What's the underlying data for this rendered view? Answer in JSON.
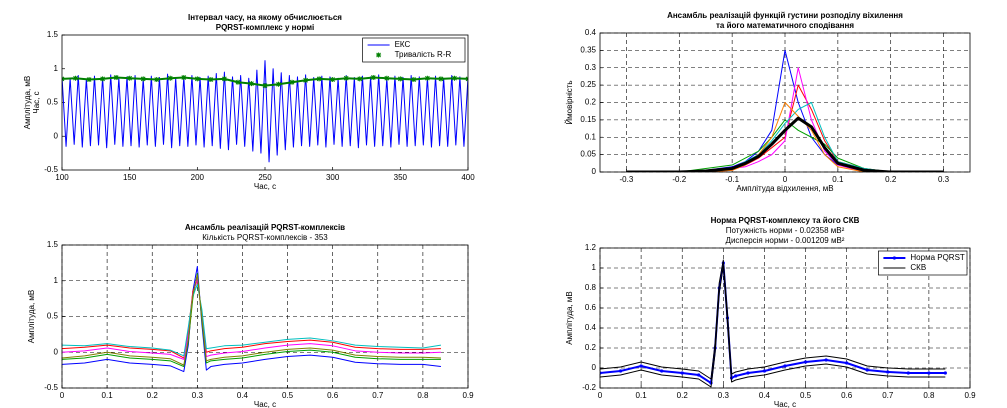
{
  "chart_data": [
    {
      "type": "line",
      "title": [
        "Інтервал часу, на якому обчислюється",
        "PQRST-комплекс у нормі"
      ],
      "xlabel": "Час, с",
      "ylabel": [
        "Амплітуда, мВ",
        "Час, с"
      ],
      "xlim": [
        100,
        400
      ],
      "xticks": [
        100,
        150,
        200,
        250,
        300,
        350,
        400
      ],
      "ylim": [
        -0.5,
        1.5
      ],
      "yticks": [
        -0.5,
        0,
        0.5,
        1,
        1.5
      ],
      "grid": false,
      "legend": "upper right",
      "series": [
        {
          "name": "ЕКС",
          "color": "#0000ff",
          "x": [
            100,
            103,
            106,
            109,
            112,
            115,
            118,
            121,
            124,
            127,
            130,
            133,
            136,
            139,
            142,
            145,
            148,
            151,
            154,
            157,
            160,
            163,
            166,
            169,
            172,
            175,
            178,
            181,
            184,
            187,
            190,
            193,
            196,
            199,
            202,
            205,
            208,
            211,
            214,
            217,
            220,
            223,
            226,
            229,
            232,
            235,
            238,
            241,
            244,
            247,
            250,
            253,
            256,
            259,
            262,
            265,
            268,
            271,
            274,
            277,
            280,
            283,
            286,
            289,
            292,
            295,
            298,
            301,
            304,
            307,
            310,
            313,
            316,
            319,
            322,
            325,
            328,
            331,
            334,
            337,
            340,
            343,
            346,
            349,
            352,
            355,
            358,
            361,
            364,
            367,
            370,
            373,
            376,
            379,
            382,
            385,
            388,
            391,
            394,
            397,
            400
          ],
          "values": [
            0.88,
            -0.15,
            0.86,
            -0.12,
            0.9,
            -0.16,
            0.85,
            -0.14,
            0.89,
            -0.13,
            0.87,
            -0.17,
            0.91,
            -0.12,
            0.86,
            -0.15,
            0.88,
            -0.14,
            0.9,
            -0.16,
            0.85,
            -0.13,
            0.89,
            -0.15,
            0.87,
            -0.12,
            0.92,
            -0.17,
            0.86,
            -0.14,
            0.88,
            -0.15,
            0.9,
            -0.13,
            0.87,
            -0.16,
            0.89,
            -0.14,
            0.93,
            -0.18,
            0.95,
            -0.2,
            0.88,
            -0.12,
            0.9,
            -0.15,
            0.86,
            -0.22,
            0.98,
            -0.25,
            1.12,
            -0.38,
            1.0,
            -0.28,
            0.94,
            -0.2,
            0.9,
            -0.16,
            0.88,
            -0.14,
            0.91,
            -0.15,
            0.87,
            -0.13,
            0.89,
            -0.16,
            0.88,
            -0.12,
            0.86,
            -0.15,
            0.9,
            -0.14,
            0.87,
            -0.17,
            0.89,
            -0.13,
            0.88,
            -0.15,
            0.91,
            -0.14,
            0.86,
            -0.16,
            0.89,
            -0.12,
            0.87,
            -0.15,
            0.9,
            -0.14,
            0.88,
            -0.13,
            0.87,
            -0.16,
            0.89,
            -0.14,
            0.86,
            -0.15,
            0.9,
            -0.13,
            0.88,
            -0.15,
            0.87
          ]
        },
        {
          "name": "Тривалість R-R",
          "color": "#008000",
          "marker": "asterisk",
          "linewidth": 2,
          "x": [
            100,
            110,
            120,
            130,
            140,
            150,
            160,
            170,
            180,
            190,
            200,
            210,
            220,
            230,
            240,
            250,
            260,
            270,
            280,
            290,
            300,
            310,
            320,
            330,
            340,
            350,
            360,
            370,
            380,
            390,
            400
          ],
          "values": [
            0.85,
            0.86,
            0.84,
            0.85,
            0.87,
            0.86,
            0.85,
            0.84,
            0.86,
            0.87,
            0.85,
            0.84,
            0.85,
            0.8,
            0.78,
            0.75,
            0.77,
            0.8,
            0.83,
            0.85,
            0.84,
            0.86,
            0.85,
            0.87,
            0.86,
            0.85,
            0.84,
            0.86,
            0.85,
            0.86,
            0.85
          ]
        }
      ]
    },
    {
      "type": "line",
      "title": [
        "Ансамбль реалізацій функцій густини розподілу віхилення",
        "та його математичного сподівання"
      ],
      "xlabel": "Амплітуда відхилення, мВ",
      "ylabel": [
        "Ймовірність"
      ],
      "xlim": [
        -0.35,
        0.35
      ],
      "xticks": [
        -0.3,
        -0.2,
        -0.1,
        0,
        0.1,
        0.2,
        0.3
      ],
      "ylim": [
        0,
        0.4
      ],
      "yticks": [
        0,
        0.05,
        0.1,
        0.15,
        0.2,
        0.25,
        0.3,
        0.35,
        0.4
      ],
      "grid": true,
      "x": [
        -0.3,
        -0.2,
        -0.15,
        -0.1,
        -0.075,
        -0.05,
        -0.025,
        0,
        0.025,
        0.05,
        0.075,
        0.1,
        0.15,
        0.2,
        0.3
      ],
      "series": [
        {
          "color": "#0000ff",
          "values": [
            0,
            0,
            0.005,
            0.015,
            0.03,
            0.06,
            0.12,
            0.35,
            0.2,
            0.1,
            0.05,
            0.02,
            0.005,
            0,
            0
          ]
        },
        {
          "color": "#ff0000",
          "values": [
            0,
            0,
            0,
            0.005,
            0.02,
            0.04,
            0.07,
            0.1,
            0.25,
            0.18,
            0.09,
            0.03,
            0.01,
            0,
            0
          ]
        },
        {
          "color": "#00a000",
          "values": [
            0,
            0,
            0.01,
            0.02,
            0.04,
            0.06,
            0.1,
            0.15,
            0.12,
            0.1,
            0.08,
            0.04,
            0.01,
            0,
            0
          ]
        },
        {
          "color": "#ff00ff",
          "values": [
            0,
            0,
            0,
            0.01,
            0.015,
            0.03,
            0.05,
            0.09,
            0.3,
            0.15,
            0.06,
            0.02,
            0,
            0,
            0
          ]
        },
        {
          "color": "#00bfbf",
          "values": [
            0,
            0,
            0.005,
            0.01,
            0.03,
            0.05,
            0.09,
            0.14,
            0.18,
            0.2,
            0.1,
            0.03,
            0.01,
            0,
            0
          ]
        },
        {
          "color": "#ff8000",
          "values": [
            0,
            0,
            0,
            0.005,
            0.02,
            0.05,
            0.1,
            0.2,
            0.16,
            0.12,
            0.05,
            0.015,
            0,
            0,
            0
          ]
        },
        {
          "color": "#000000",
          "linewidth": 3,
          "values": [
            0,
            0,
            0.003,
            0.01,
            0.025,
            0.045,
            0.08,
            0.12,
            0.155,
            0.13,
            0.07,
            0.025,
            0.005,
            0,
            0
          ]
        }
      ]
    },
    {
      "type": "line",
      "title": [
        "Ансамбль реалізацій PQRST-комплексів"
      ],
      "subtitle": [
        "Кількість PQRST-комплексів - 353"
      ],
      "xlabel": "Час, с",
      "ylabel": [
        "Амплітуда, мВ"
      ],
      "xlim": [
        0,
        0.9
      ],
      "xticks": [
        0,
        0.1,
        0.2,
        0.3,
        0.4,
        0.5,
        0.6,
        0.7,
        0.8,
        0.9
      ],
      "ylim": [
        -0.5,
        1.5
      ],
      "yticks": [
        -0.5,
        0,
        0.5,
        1,
        1.5
      ],
      "grid": true,
      "x": [
        0,
        0.05,
        0.1,
        0.15,
        0.2,
        0.24,
        0.27,
        0.28,
        0.29,
        0.3,
        0.31,
        0.32,
        0.33,
        0.36,
        0.4,
        0.45,
        0.5,
        0.55,
        0.6,
        0.65,
        0.7,
        0.75,
        0.8,
        0.84
      ],
      "series": [
        {
          "color": "#0000ff",
          "values": [
            -0.17,
            -0.15,
            -0.1,
            -0.15,
            -0.17,
            -0.19,
            -0.27,
            0.1,
            0.85,
            1.2,
            0.4,
            -0.25,
            -0.2,
            -0.17,
            -0.15,
            -0.1,
            -0.06,
            -0.04,
            -0.07,
            -0.14,
            -0.16,
            -0.17,
            -0.17,
            -0.2
          ]
        },
        {
          "color": "#ff0000",
          "values": [
            0.05,
            0.07,
            0.1,
            0.06,
            0.04,
            0.02,
            -0.08,
            0.3,
            0.85,
            1.0,
            0.55,
            0,
            0.02,
            0.05,
            0.07,
            0.12,
            0.15,
            0.17,
            0.14,
            0.07,
            0.05,
            0.04,
            0.04,
            0.05
          ]
        },
        {
          "color": "#00a000",
          "values": [
            -0.1,
            -0.08,
            -0.03,
            -0.08,
            -0.1,
            -0.12,
            -0.2,
            0.15,
            0.75,
            1.1,
            0.45,
            -0.15,
            -0.12,
            -0.1,
            -0.08,
            -0.03,
            0.01,
            0.03,
            0,
            -0.07,
            -0.09,
            -0.1,
            -0.1,
            -0.1
          ]
        },
        {
          "color": "#ff00ff",
          "values": [
            0,
            0.02,
            0.06,
            0.01,
            -0.01,
            -0.03,
            -0.1,
            0.25,
            0.82,
            1.02,
            0.52,
            -0.06,
            -0.04,
            -0.01,
            0.01,
            0.06,
            0.1,
            0.12,
            0.09,
            0.02,
            0,
            -0.01,
            -0.01,
            0
          ]
        },
        {
          "color": "#00bfbf",
          "values": [
            0.1,
            0.09,
            0.12,
            0.08,
            0.06,
            0.03,
            -0.05,
            0.35,
            0.78,
            0.95,
            0.6,
            0.05,
            0.06,
            0.09,
            0.1,
            0.14,
            0.18,
            0.2,
            0.16,
            0.1,
            0.08,
            0.07,
            0.06,
            0.1
          ]
        },
        {
          "color": "#808000",
          "values": [
            -0.08,
            -0.05,
            0,
            -0.05,
            -0.07,
            -0.09,
            -0.18,
            0.18,
            0.8,
            1.08,
            0.48,
            -0.12,
            -0.1,
            -0.07,
            -0.05,
            0,
            0.04,
            0.06,
            0.03,
            -0.04,
            -0.06,
            -0.07,
            -0.07,
            -0.08
          ]
        }
      ]
    },
    {
      "type": "line",
      "title": [
        "Норма PQRST-комплексу та його СКВ"
      ],
      "subtitle": [
        "Потужність норми - 0.02358 мВ²",
        "Дисперсія норми - 0.001209 мВ²"
      ],
      "xlabel": "Час, с",
      "ylabel": [
        "Амплітуда, мВ"
      ],
      "xlim": [
        0,
        0.9
      ],
      "xticks": [
        0,
        0.1,
        0.2,
        0.3,
        0.4,
        0.5,
        0.6,
        0.7,
        0.8,
        0.9
      ],
      "ylim": [
        -0.2,
        1.2
      ],
      "yticks": [
        -0.2,
        0,
        0.2,
        0.4,
        0.6,
        0.8,
        1,
        1.2
      ],
      "grid": true,
      "legend": "upper right",
      "x": [
        0,
        0.05,
        0.1,
        0.15,
        0.2,
        0.24,
        0.27,
        0.28,
        0.29,
        0.3,
        0.31,
        0.32,
        0.33,
        0.36,
        0.4,
        0.45,
        0.5,
        0.55,
        0.6,
        0.65,
        0.7,
        0.75,
        0.8,
        0.84
      ],
      "series": [
        {
          "name": "Норма PQRST",
          "color": "#0000ff",
          "marker": "dot",
          "linewidth": 2,
          "values": [
            -0.05,
            -0.03,
            0.02,
            -0.03,
            -0.05,
            -0.07,
            -0.15,
            0.2,
            0.8,
            1.05,
            0.5,
            -0.1,
            -0.08,
            -0.05,
            -0.03,
            0.02,
            0.06,
            0.08,
            0.05,
            -0.02,
            -0.04,
            -0.05,
            -0.05,
            -0.05
          ]
        },
        {
          "name": "СКВ",
          "color": "#000000",
          "values": [
            -0.01,
            0.01,
            0.06,
            0.01,
            -0.01,
            -0.03,
            -0.11,
            0.25,
            0.85,
            1.08,
            0.55,
            -0.06,
            -0.04,
            -0.01,
            0.01,
            0.06,
            0.1,
            0.12,
            0.09,
            0.02,
            0,
            -0.01,
            -0.01,
            -0.01
          ]
        },
        {
          "color": "#000000",
          "values": [
            -0.09,
            -0.07,
            -0.02,
            -0.07,
            -0.09,
            -0.11,
            -0.19,
            0.15,
            0.75,
            1.02,
            0.45,
            -0.14,
            -0.12,
            -0.09,
            -0.07,
            -0.02,
            0.02,
            0.04,
            0.01,
            -0.06,
            -0.08,
            -0.09,
            -0.09,
            -0.09
          ]
        }
      ]
    }
  ]
}
